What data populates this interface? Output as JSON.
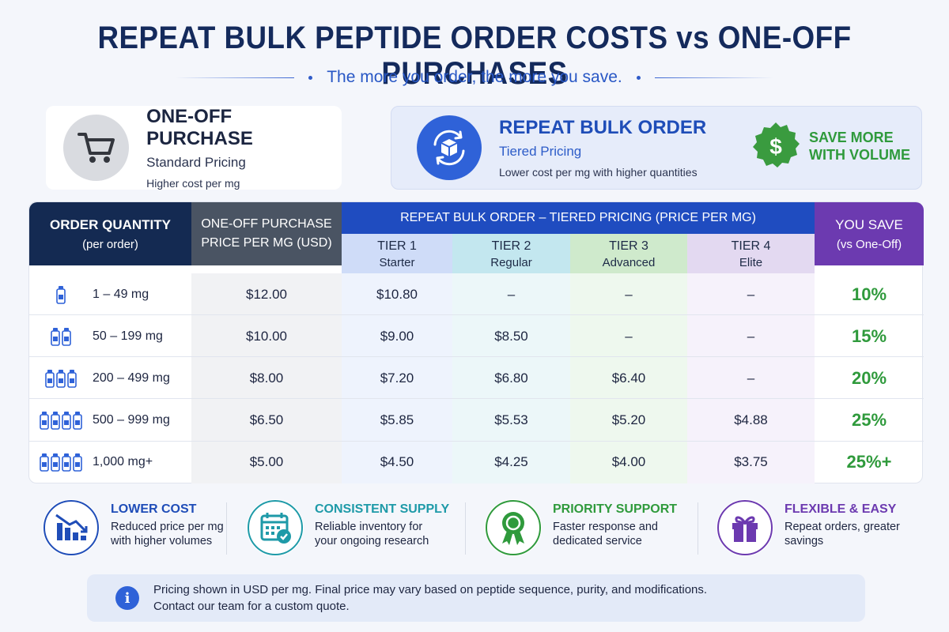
{
  "header": {
    "title": "REPEAT BULK PEPTIDE ORDER COSTS vs ONE-OFF PURCHASES",
    "subtitle": "The more you order, the more you save."
  },
  "cards": {
    "one_off": {
      "title": "ONE-OFF PURCHASE",
      "subtitle": "Standard Pricing",
      "description": "Higher cost per mg",
      "icon": "shopping-cart-icon"
    },
    "repeat": {
      "title": "REPEAT BULK ORDER",
      "subtitle": "Tiered Pricing",
      "description": "Lower cost per mg with higher quantities",
      "icon": "box-refresh-icon",
      "badge_line1": "SAVE MORE",
      "badge_line2": "WITH VOLUME",
      "badge_icon": "dollar-seal-icon"
    }
  },
  "table": {
    "headers": {
      "qty_line1": "ORDER QUANTITY",
      "qty_line2": "(per order)",
      "one_line1": "ONE-OFF PURCHASE",
      "one_line2": "PRICE PER MG (USD)",
      "repeat": "REPEAT BULK ORDER – TIERED PRICING (PRICE PER MG)",
      "save_line1": "YOU SAVE",
      "save_line2": "(vs One-Off)"
    },
    "tiers": [
      {
        "name": "TIER 1",
        "label": "Starter"
      },
      {
        "name": "TIER 2",
        "label": "Regular"
      },
      {
        "name": "TIER 3",
        "label": "Advanced"
      },
      {
        "name": "TIER 4",
        "label": "Elite"
      }
    ],
    "rows": [
      {
        "qty": "1 – 49 mg",
        "vials": 1,
        "one_off": "$12.00",
        "t1": "$10.80",
        "t2": "–",
        "t3": "–",
        "t4": "–",
        "save": "10%"
      },
      {
        "qty": "50 – 199 mg",
        "vials": 2,
        "one_off": "$10.00",
        "t1": "$9.00",
        "t2": "$8.50",
        "t3": "–",
        "t4": "–",
        "save": "15%"
      },
      {
        "qty": "200 – 499 mg",
        "vials": 3,
        "one_off": "$8.00",
        "t1": "$7.20",
        "t2": "$6.80",
        "t3": "$6.40",
        "t4": "–",
        "save": "20%"
      },
      {
        "qty": "500 – 999 mg",
        "vials": 4,
        "one_off": "$6.50",
        "t1": "$5.85",
        "t2": "$5.53",
        "t3": "$5.20",
        "t4": "$4.88",
        "save": "25%"
      },
      {
        "qty": "1,000 mg+",
        "vials": 4,
        "one_off": "$5.00",
        "t1": "$4.50",
        "t2": "$4.25",
        "t3": "$4.00",
        "t4": "$3.75",
        "save": "25%+"
      }
    ]
  },
  "features": [
    {
      "title": "LOWER COST",
      "desc": "Reduced price per mg with higher volumes",
      "icon": "bar-chart-down-icon",
      "color": "#1f4db8"
    },
    {
      "title": "CONSISTENT SUPPLY",
      "desc": "Reliable inventory for your ongoing research",
      "icon": "calendar-check-icon",
      "color": "#1e9aa8"
    },
    {
      "title": "PRIORITY SUPPORT",
      "desc": "Faster response and dedicated service",
      "icon": "award-ribbon-icon",
      "color": "#2f9a3c"
    },
    {
      "title": "FLEXIBLE & EASY",
      "desc": "Repeat orders, greater savings",
      "icon": "gift-icon",
      "color": "#6c3ab0"
    }
  ],
  "note": {
    "icon": "info-icon",
    "line1": "Pricing shown in USD per mg. Final price may vary based on peptide sequence, purity, and modifications.",
    "line2": "Contact our team for a custom quote."
  },
  "colors": {
    "navy": "#142a52",
    "blue": "#1f4cc0",
    "purple": "#6c3ab0",
    "green": "#2f9a3c"
  }
}
